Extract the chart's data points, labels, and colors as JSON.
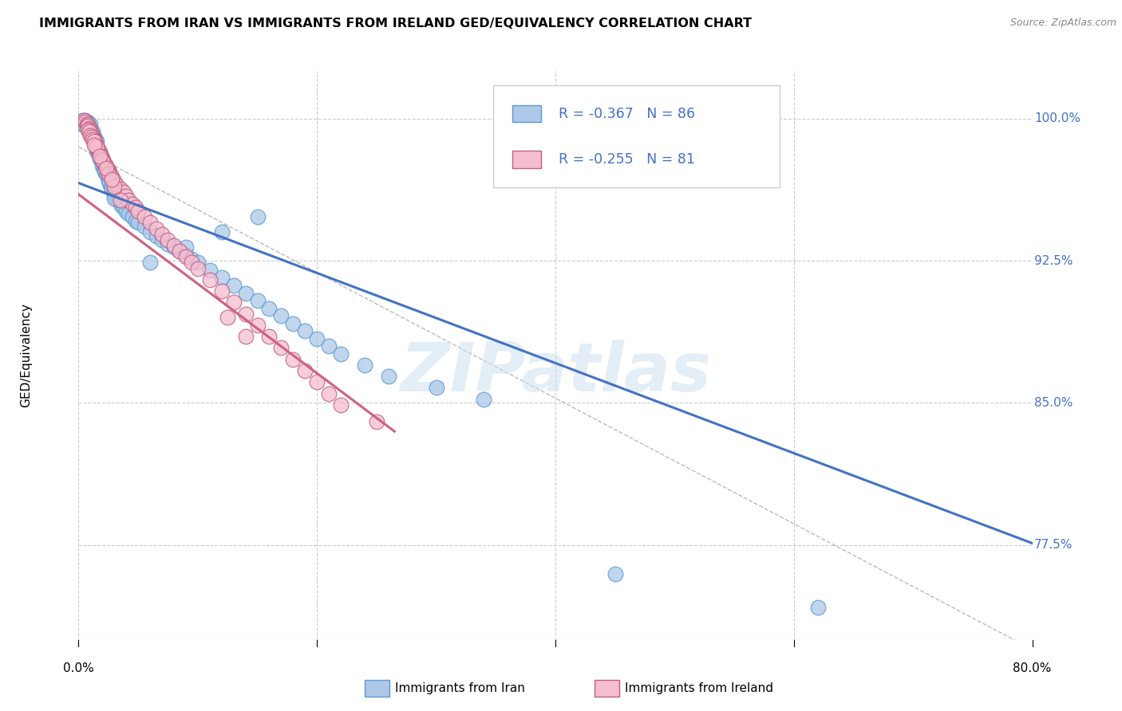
{
  "title": "IMMIGRANTS FROM IRAN VS IMMIGRANTS FROM IRELAND GED/EQUIVALENCY CORRELATION CHART",
  "source": "Source: ZipAtlas.com",
  "ylabel": "GED/Equivalency",
  "ytick_vals": [
    0.775,
    0.85,
    0.925,
    1.0
  ],
  "ytick_labels": [
    "77.5%",
    "85.0%",
    "92.5%",
    "100.0%"
  ],
  "xtick_labels": [
    "0.0%",
    "80.0%"
  ],
  "xmin": 0.0,
  "xmax": 0.8,
  "ymin": 0.725,
  "ymax": 1.025,
  "legend_text_1": "R = -0.367   N = 86",
  "legend_text_2": "R = -0.255   N = 81",
  "color_iran_fill": "#adc8e8",
  "color_iran_edge": "#5b9bd5",
  "color_ireland_fill": "#f5bdd0",
  "color_ireland_edge": "#c06080",
  "color_iran_line": "#4472c4",
  "color_ireland_line": "#d06080",
  "color_legend_text": "#4472c4",
  "watermark": "ZIPatlas",
  "background_color": "#ffffff",
  "grid_color": "#cccccc",
  "iran_line_x": [
    0.0,
    0.8
  ],
  "iran_line_y": [
    0.966,
    0.776
  ],
  "ireland_line_x": [
    0.0,
    0.265
  ],
  "ireland_line_y": [
    0.96,
    0.835
  ],
  "diag_line_x": [
    0.0,
    0.8
  ],
  "diag_line_y": [
    0.985,
    0.72
  ],
  "iran_x": [
    0.005,
    0.007,
    0.008,
    0.008,
    0.009,
    0.01,
    0.01,
    0.01,
    0.011,
    0.012,
    0.012,
    0.013,
    0.013,
    0.014,
    0.014,
    0.015,
    0.015,
    0.015,
    0.016,
    0.016,
    0.017,
    0.018,
    0.018,
    0.019,
    0.02,
    0.02,
    0.02,
    0.021,
    0.022,
    0.022,
    0.023,
    0.024,
    0.025,
    0.025,
    0.026,
    0.027,
    0.028,
    0.03,
    0.03,
    0.032,
    0.033,
    0.035,
    0.036,
    0.038,
    0.04,
    0.042,
    0.045,
    0.048,
    0.05,
    0.055,
    0.06,
    0.065,
    0.07,
    0.075,
    0.08,
    0.085,
    0.09,
    0.095,
    0.1,
    0.11,
    0.12,
    0.13,
    0.14,
    0.15,
    0.16,
    0.17,
    0.18,
    0.19,
    0.2,
    0.21,
    0.22,
    0.24,
    0.26,
    0.3,
    0.34,
    0.15,
    0.12,
    0.09,
    0.06,
    0.03,
    0.45,
    0.62,
    0.003,
    0.004,
    0.006,
    0.009
  ],
  "iran_y": [
    0.999,
    0.998,
    0.998,
    0.995,
    0.996,
    0.997,
    0.994,
    0.993,
    0.992,
    0.993,
    0.991,
    0.99,
    0.988,
    0.989,
    0.987,
    0.988,
    0.985,
    0.983,
    0.984,
    0.982,
    0.981,
    0.982,
    0.979,
    0.978,
    0.979,
    0.977,
    0.975,
    0.974,
    0.975,
    0.972,
    0.971,
    0.97,
    0.969,
    0.967,
    0.966,
    0.964,
    0.963,
    0.962,
    0.96,
    0.958,
    0.957,
    0.956,
    0.954,
    0.953,
    0.951,
    0.95,
    0.948,
    0.946,
    0.945,
    0.943,
    0.94,
    0.938,
    0.936,
    0.934,
    0.932,
    0.93,
    0.928,
    0.926,
    0.924,
    0.92,
    0.916,
    0.912,
    0.908,
    0.904,
    0.9,
    0.896,
    0.892,
    0.888,
    0.884,
    0.88,
    0.876,
    0.87,
    0.864,
    0.858,
    0.852,
    0.948,
    0.94,
    0.932,
    0.924,
    0.958,
    0.76,
    0.742,
    0.999,
    0.997,
    0.996,
    0.994
  ],
  "ireland_x": [
    0.005,
    0.006,
    0.007,
    0.008,
    0.008,
    0.009,
    0.01,
    0.01,
    0.011,
    0.012,
    0.012,
    0.013,
    0.014,
    0.014,
    0.015,
    0.015,
    0.016,
    0.017,
    0.018,
    0.018,
    0.019,
    0.02,
    0.02,
    0.021,
    0.022,
    0.023,
    0.024,
    0.025,
    0.025,
    0.026,
    0.027,
    0.028,
    0.03,
    0.032,
    0.035,
    0.038,
    0.04,
    0.042,
    0.045,
    0.048,
    0.05,
    0.055,
    0.06,
    0.065,
    0.07,
    0.075,
    0.08,
    0.085,
    0.09,
    0.095,
    0.1,
    0.11,
    0.12,
    0.13,
    0.14,
    0.15,
    0.16,
    0.17,
    0.18,
    0.19,
    0.2,
    0.21,
    0.22,
    0.008,
    0.009,
    0.01,
    0.011,
    0.012,
    0.013,
    0.015,
    0.02,
    0.025,
    0.03,
    0.035,
    0.125,
    0.25,
    0.14,
    0.013,
    0.018,
    0.023,
    0.028
  ],
  "ireland_y": [
    0.999,
    0.998,
    0.997,
    0.997,
    0.996,
    0.995,
    0.994,
    0.993,
    0.992,
    0.991,
    0.99,
    0.989,
    0.988,
    0.987,
    0.986,
    0.985,
    0.984,
    0.983,
    0.982,
    0.981,
    0.98,
    0.979,
    0.978,
    0.977,
    0.976,
    0.975,
    0.974,
    0.973,
    0.972,
    0.971,
    0.97,
    0.969,
    0.967,
    0.965,
    0.963,
    0.961,
    0.959,
    0.957,
    0.955,
    0.953,
    0.951,
    0.948,
    0.945,
    0.942,
    0.939,
    0.936,
    0.933,
    0.93,
    0.927,
    0.924,
    0.921,
    0.915,
    0.909,
    0.903,
    0.897,
    0.891,
    0.885,
    0.879,
    0.873,
    0.867,
    0.861,
    0.855,
    0.849,
    0.994,
    0.993,
    0.991,
    0.99,
    0.989,
    0.988,
    0.985,
    0.978,
    0.971,
    0.964,
    0.957,
    0.895,
    0.84,
    0.885,
    0.986,
    0.98,
    0.974,
    0.968
  ]
}
